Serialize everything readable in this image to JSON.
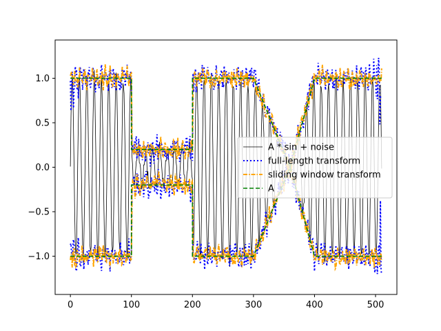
{
  "chart_data": {
    "type": "line",
    "title": "",
    "xlabel": "",
    "ylabel": "",
    "xlim": [
      -25,
      535
    ],
    "ylim": [
      -1.43,
      1.43
    ],
    "x_ticks": [
      0,
      100,
      200,
      300,
      400,
      500
    ],
    "x_tick_labels": [
      "0",
      "100",
      "200",
      "300",
      "400",
      "500"
    ],
    "y_ticks": [
      -1.0,
      -0.5,
      0.0,
      0.5,
      1.0
    ],
    "y_tick_labels": [
      "−1.0",
      "−0.5",
      "0.0",
      "0.5",
      "1.0"
    ],
    "grid": false,
    "legend_position": "center-right",
    "amplitude_segments": [
      {
        "x0": 0,
        "x1": 100,
        "a0": 1.0,
        "a1": 1.0
      },
      {
        "x0": 100,
        "x1": 200,
        "a0": 0.2,
        "a1": 0.2
      },
      {
        "x0": 200,
        "x1": 300,
        "a0": 1.0,
        "a1": 1.0
      },
      {
        "x0": 300,
        "x1": 360,
        "a0": 1.0,
        "a1": 0.0
      },
      {
        "x0": 360,
        "x1": 400,
        "a0": 0.0,
        "a1": 1.0
      },
      {
        "x0": 400,
        "x1": 510,
        "a0": 1.0,
        "a1": 1.0
      }
    ],
    "sine_period": 12,
    "x_range": [
      0,
      510
    ],
    "series": [
      {
        "name": "A * sin + noise",
        "color": "#000000",
        "style": "solid",
        "kind": "signal"
      },
      {
        "name": "full-length transform",
        "color": "#0000ff",
        "style": "dotted",
        "kind": "envelope-full"
      },
      {
        "name": "sliding window transform",
        "color": "#ffa500",
        "style": "dashdot",
        "kind": "envelope-window"
      },
      {
        "name": "A",
        "color": "#008000",
        "style": "dashed",
        "kind": "amplitude"
      }
    ]
  }
}
